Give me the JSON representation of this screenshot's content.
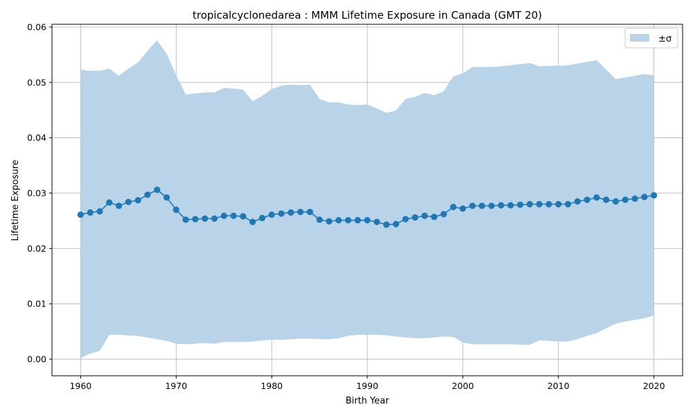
{
  "chart_data": {
    "type": "line",
    "title": "tropicalcyclonedarea : MMM Lifetime Exposure in Canada (GMT 20)",
    "xlabel": "Birth Year",
    "ylabel": "Lifetime Exposure",
    "xlim": [
      1957,
      2023
    ],
    "ylim": [
      -0.003,
      0.0605
    ],
    "x_ticks": [
      1960,
      1970,
      1980,
      1990,
      2000,
      2010,
      2020
    ],
    "y_ticks": [
      0.0,
      0.01,
      0.02,
      0.03,
      0.04,
      0.05,
      0.06
    ],
    "y_tick_labels": [
      "0.00",
      "0.01",
      "0.02",
      "0.03",
      "0.04",
      "0.05",
      "0.06"
    ],
    "grid": true,
    "legend_position": "top-right",
    "colors": {
      "line": "#1f77b4",
      "band": "#b9d4e8"
    },
    "x": [
      1960,
      1961,
      1962,
      1963,
      1964,
      1965,
      1966,
      1967,
      1968,
      1969,
      1970,
      1971,
      1972,
      1973,
      1974,
      1975,
      1976,
      1977,
      1978,
      1979,
      1980,
      1981,
      1982,
      1983,
      1984,
      1985,
      1986,
      1987,
      1988,
      1989,
      1990,
      1991,
      1992,
      1993,
      1994,
      1995,
      1996,
      1997,
      1998,
      1999,
      2000,
      2001,
      2002,
      2003,
      2004,
      2005,
      2006,
      2007,
      2008,
      2009,
      2010,
      2011,
      2012,
      2013,
      2014,
      2015,
      2016,
      2017,
      2018,
      2019,
      2020
    ],
    "series": [
      {
        "name": "",
        "values": [
          0.0261,
          0.0265,
          0.0267,
          0.0283,
          0.0277,
          0.0284,
          0.0287,
          0.0297,
          0.0306,
          0.0292,
          0.027,
          0.0252,
          0.0253,
          0.0254,
          0.0254,
          0.0259,
          0.0259,
          0.0258,
          0.0248,
          0.0255,
          0.0261,
          0.0263,
          0.0265,
          0.0266,
          0.0266,
          0.0252,
          0.0249,
          0.0251,
          0.0251,
          0.0251,
          0.0251,
          0.0248,
          0.0243,
          0.0244,
          0.0253,
          0.0256,
          0.0259,
          0.0257,
          0.0262,
          0.0275,
          0.0272,
          0.0277,
          0.0277,
          0.0277,
          0.0278,
          0.0278,
          0.0279,
          0.028,
          0.028,
          0.028,
          0.028,
          0.028,
          0.0285,
          0.0288,
          0.0292,
          0.0288,
          0.0285,
          0.0288,
          0.029,
          0.0293,
          0.0296
        ]
      }
    ],
    "band": {
      "name": "±σ",
      "upper": [
        0.0523,
        0.0521,
        0.0521,
        0.0525,
        0.0512,
        0.0525,
        0.0536,
        0.0557,
        0.0576,
        0.0552,
        0.0513,
        0.0478,
        0.048,
        0.0482,
        0.0482,
        0.049,
        0.0489,
        0.0487,
        0.0466,
        0.0476,
        0.0488,
        0.0494,
        0.0496,
        0.0495,
        0.0496,
        0.047,
        0.0464,
        0.0464,
        0.046,
        0.0459,
        0.046,
        0.0453,
        0.0445,
        0.0449,
        0.047,
        0.0474,
        0.0481,
        0.0477,
        0.0484,
        0.0511,
        0.0516,
        0.0528,
        0.0528,
        0.0528,
        0.0529,
        0.0531,
        0.0533,
        0.0535,
        0.0529,
        0.053,
        0.053,
        0.0531,
        0.0534,
        0.0537,
        0.054,
        0.0523,
        0.0506,
        0.0509,
        0.0512,
        0.0515,
        0.0513
      ],
      "lower": [
        0.0002,
        0.001,
        0.0015,
        0.0044,
        0.0044,
        0.0043,
        0.0042,
        0.0039,
        0.0036,
        0.0033,
        0.0028,
        0.0027,
        0.0028,
        0.0029,
        0.0028,
        0.0031,
        0.0031,
        0.0031,
        0.0032,
        0.0034,
        0.0035,
        0.0035,
        0.0036,
        0.0037,
        0.0037,
        0.0036,
        0.0036,
        0.0038,
        0.0042,
        0.0044,
        0.0044,
        0.0044,
        0.0043,
        0.0041,
        0.0039,
        0.0038,
        0.0038,
        0.0039,
        0.0041,
        0.004,
        0.003,
        0.0027,
        0.0027,
        0.0027,
        0.0027,
        0.0027,
        0.0026,
        0.0026,
        0.0034,
        0.0033,
        0.0032,
        0.0032,
        0.0036,
        0.0042,
        0.0047,
        0.0056,
        0.0064,
        0.0068,
        0.0071,
        0.0074,
        0.0079
      ]
    }
  }
}
